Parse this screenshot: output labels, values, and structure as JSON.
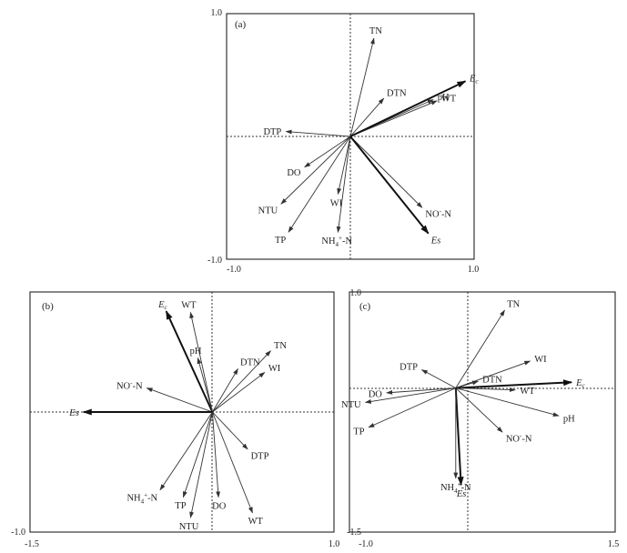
{
  "chart_data": [
    {
      "type": "scatter",
      "panel_label": "(a)",
      "xlim": [
        -1.0,
        1.0
      ],
      "ylim": [
        -1.0,
        1.0
      ],
      "tick_labels": {
        "x_left": "-1.0",
        "x_right": "1.0",
        "y_top": "1.0",
        "y_bottom": "-1.0"
      },
      "vectors": [
        {
          "sub": "",
          "x": 0.19,
          "y": 0.8,
          "bold": false,
          "italic": false,
          "label": {
            "main": "TN",
            "sup": "",
            "tail": ""
          }
        },
        {
          "sub": "",
          "x": 0.27,
          "y": 0.31,
          "bold": false,
          "italic": false,
          "label": {
            "main": "DTN",
            "sup": "",
            "tail": ""
          }
        },
        {
          "sub": "",
          "x": 0.67,
          "y": 0.3,
          "bold": false,
          "italic": false,
          "label": {
            "main": "pH",
            "sup": "",
            "tail": ""
          }
        },
        {
          "sub": "",
          "x": 0.7,
          "y": 0.29,
          "bold": false,
          "italic": false,
          "label": {
            "main": "WT",
            "sup": "",
            "tail": ""
          }
        },
        {
          "sub": "",
          "x": 0.93,
          "y": 0.45,
          "bold": true,
          "italic": true,
          "label": {
            "main": "E",
            "sup": "",
            "tail": "c"
          }
        },
        {
          "sub": "",
          "x": -0.52,
          "y": 0.04,
          "bold": false,
          "italic": false,
          "label": {
            "main": "DTP",
            "sup": "",
            "tail": ""
          }
        },
        {
          "sub": "",
          "x": -0.37,
          "y": -0.25,
          "bold": false,
          "italic": false,
          "label": {
            "main": "DO",
            "sup": "",
            "tail": ""
          }
        },
        {
          "sub": "",
          "x": -0.56,
          "y": -0.55,
          "bold": false,
          "italic": false,
          "label": {
            "main": "NTU",
            "sup": "",
            "tail": ""
          }
        },
        {
          "sub": "",
          "x": -0.5,
          "y": -0.78,
          "bold": false,
          "italic": false,
          "label": {
            "main": "TP",
            "sup": "",
            "tail": ""
          }
        },
        {
          "sub": "",
          "x": -0.1,
          "y": -0.47,
          "bold": false,
          "italic": false,
          "label": {
            "main": "WI",
            "sup": "",
            "tail": ""
          }
        },
        {
          "sub": "4",
          "x": -0.1,
          "y": -0.78,
          "bold": false,
          "italic": false,
          "label": {
            "main": "NH",
            "sup": "+",
            "tail": "-N"
          }
        },
        {
          "sub": "",
          "x": 0.58,
          "y": -0.58,
          "bold": false,
          "italic": false,
          "label": {
            "main": "NO",
            "sup": "-",
            "tail": "-N"
          }
        },
        {
          "sub": "",
          "x": 0.63,
          "y": -0.79,
          "bold": true,
          "italic": true,
          "label": {
            "main": "Es",
            "sup": "",
            "tail": ""
          }
        }
      ]
    },
    {
      "type": "scatter",
      "panel_label": "(b)",
      "xlim": [
        -1.5,
        1.0
      ],
      "ylim": [
        -1.0,
        1.0
      ],
      "tick_labels": {
        "x_left": "-1.5",
        "x_right": "1.0",
        "y_top": "",
        "y_bottom": "-1.0"
      },
      "vectors": [
        {
          "sub": "",
          "x": -0.38,
          "y": 0.84,
          "bold": true,
          "italic": true,
          "label": {
            "main": "E",
            "sup": "",
            "tail": "c"
          }
        },
        {
          "sub": "",
          "x": -0.18,
          "y": 0.83,
          "bold": false,
          "italic": false,
          "label": {
            "main": "WT",
            "sup": "",
            "tail": ""
          }
        },
        {
          "sub": "",
          "x": -0.12,
          "y": 0.45,
          "bold": false,
          "italic": false,
          "label": {
            "main": "pH",
            "sup": "",
            "tail": ""
          }
        },
        {
          "sub": "",
          "x": -0.54,
          "y": 0.2,
          "bold": false,
          "italic": false,
          "label": {
            "main": "NO",
            "sup": "-",
            "tail": "-N"
          }
        },
        {
          "sub": "",
          "x": -1.06,
          "y": 0.0,
          "bold": true,
          "italic": true,
          "label": {
            "main": "Es",
            "sup": "",
            "tail": ""
          }
        },
        {
          "sub": "",
          "x": 0.21,
          "y": 0.36,
          "bold": false,
          "italic": false,
          "label": {
            "main": "DTN",
            "sup": "",
            "tail": ""
          }
        },
        {
          "sub": "",
          "x": 0.48,
          "y": 0.51,
          "bold": false,
          "italic": false,
          "label": {
            "main": "TN",
            "sup": "",
            "tail": ""
          }
        },
        {
          "sub": "",
          "x": 0.43,
          "y": 0.33,
          "bold": false,
          "italic": false,
          "label": {
            "main": "WI",
            "sup": "",
            "tail": ""
          }
        },
        {
          "sub": "",
          "x": 0.29,
          "y": -0.31,
          "bold": false,
          "italic": false,
          "label": {
            "main": "DTP",
            "sup": "",
            "tail": ""
          }
        },
        {
          "sub": "",
          "x": 0.33,
          "y": -0.84,
          "bold": false,
          "italic": false,
          "label": {
            "main": "WT",
            "sup": "",
            "tail": ""
          }
        },
        {
          "sub": "",
          "x": 0.05,
          "y": -0.71,
          "bold": false,
          "italic": false,
          "label": {
            "main": "DO",
            "sup": "",
            "tail": ""
          }
        },
        {
          "sub": "",
          "x": -0.18,
          "y": -0.88,
          "bold": false,
          "italic": false,
          "label": {
            "main": "NTU",
            "sup": "",
            "tail": ""
          }
        },
        {
          "sub": "",
          "x": -0.24,
          "y": -0.71,
          "bold": false,
          "italic": false,
          "label": {
            "main": "TP",
            "sup": "",
            "tail": ""
          }
        },
        {
          "sub": "4",
          "x": -0.43,
          "y": -0.65,
          "bold": false,
          "italic": false,
          "label": {
            "main": "NH",
            "sup": "+",
            "tail": "-N"
          }
        }
      ]
    },
    {
      "type": "scatter",
      "panel_label": "(c)",
      "xlim": [
        -1.0,
        1.5
      ],
      "ylim": [
        -1.5,
        1.0
      ],
      "tick_labels": {
        "x_left": "-1.0",
        "x_right": "1.5",
        "y_top": "1.0",
        "y_bottom": "-1.5"
      },
      "vectors": [
        {
          "sub": "",
          "x": 0.46,
          "y": 0.81,
          "bold": false,
          "italic": false,
          "label": {
            "main": "TN",
            "sup": "",
            "tail": ""
          }
        },
        {
          "sub": "",
          "x": 0.7,
          "y": 0.28,
          "bold": false,
          "italic": false,
          "label": {
            "main": "WI",
            "sup": "",
            "tail": ""
          }
        },
        {
          "sub": "",
          "x": 0.21,
          "y": 0.07,
          "bold": false,
          "italic": false,
          "label": {
            "main": "DTN",
            "sup": "",
            "tail": ""
          }
        },
        {
          "sub": "",
          "x": 1.09,
          "y": 0.06,
          "bold": true,
          "italic": true,
          "label": {
            "main": "E",
            "sup": "",
            "tail": "c"
          }
        },
        {
          "sub": "",
          "x": 0.56,
          "y": -0.02,
          "bold": false,
          "italic": false,
          "label": {
            "main": "WT",
            "sup": "",
            "tail": ""
          }
        },
        {
          "sub": "",
          "x": 0.97,
          "y": -0.29,
          "bold": false,
          "italic": false,
          "label": {
            "main": "pH",
            "sup": "",
            "tail": ""
          }
        },
        {
          "sub": "",
          "x": 0.44,
          "y": -0.46,
          "bold": false,
          "italic": false,
          "label": {
            "main": "NO",
            "sup": "-",
            "tail": "-N"
          }
        },
        {
          "sub": "",
          "x": 0.05,
          "y": -1.01,
          "bold": true,
          "italic": true,
          "label": {
            "main": "Es",
            "sup": "",
            "tail": ""
          }
        },
        {
          "sub": "4",
          "x": 0.0,
          "y": -0.94,
          "bold": false,
          "italic": false,
          "label": {
            "main": "NH",
            "sup": "+",
            "tail": "-N"
          }
        },
        {
          "sub": "",
          "x": -0.32,
          "y": 0.19,
          "bold": false,
          "italic": false,
          "label": {
            "main": "DTP",
            "sup": "",
            "tail": ""
          }
        },
        {
          "sub": "",
          "x": -0.65,
          "y": -0.05,
          "bold": false,
          "italic": false,
          "label": {
            "main": "DO",
            "sup": "",
            "tail": ""
          }
        },
        {
          "sub": "",
          "x": -0.85,
          "y": -0.15,
          "bold": false,
          "italic": false,
          "label": {
            "main": "NTU",
            "sup": "",
            "tail": ""
          }
        },
        {
          "sub": "",
          "x": -0.82,
          "y": -0.41,
          "bold": false,
          "italic": false,
          "label": {
            "main": "TP",
            "sup": "",
            "tail": ""
          }
        }
      ]
    }
  ]
}
